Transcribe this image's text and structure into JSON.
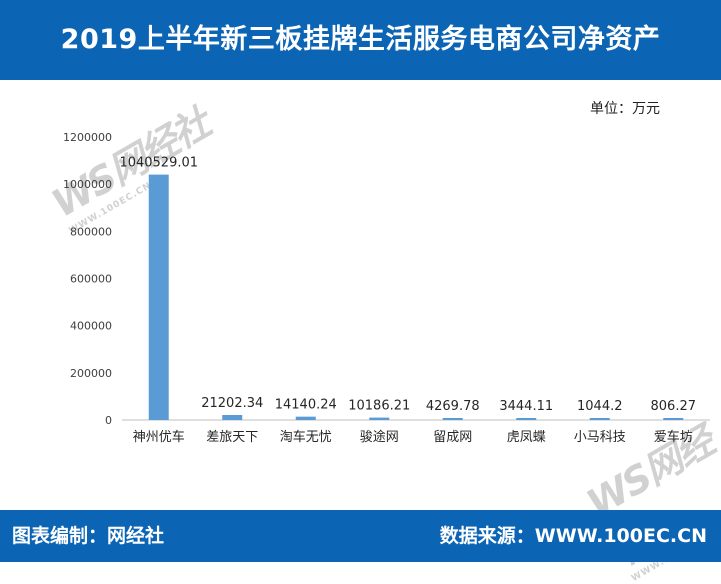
{
  "header": {
    "title": "2019上半年新三板挂牌生活服务电商公司净资产"
  },
  "unit": "单位：万元",
  "watermark": {
    "logo_text": "WS网经社",
    "url_text": "WWW.100EC.CN"
  },
  "footer": {
    "left": "图表编制：网经社",
    "right": "数据来源：WWW.100EC.CN"
  },
  "colors": {
    "bar": "#5b9bd5",
    "header_bg": "#0c64b4"
  },
  "chart_data": {
    "type": "bar",
    "title": "",
    "xlabel": "",
    "ylabel": "",
    "ylim": [
      0,
      1200000
    ],
    "yticks": [
      "0",
      "200000",
      "400000",
      "600000",
      "800000",
      "1000000",
      "1200000"
    ],
    "categories": [
      "神州优车",
      "差旅天下",
      "淘车无忧",
      "骏途网",
      "留成网",
      "虎凤蝶",
      "小马科技",
      "爱车坊"
    ],
    "values": [
      1040529.01,
      21202.34,
      14140.24,
      10186.21,
      4269.78,
      3444.11,
      1044.2,
      806.27
    ],
    "value_labels": [
      "1040529.01",
      "21202.34",
      "14140.24",
      "10186.21",
      "4269.78",
      "3444.11",
      "1044.2",
      "806.27"
    ],
    "grid": false,
    "legend": "none"
  }
}
